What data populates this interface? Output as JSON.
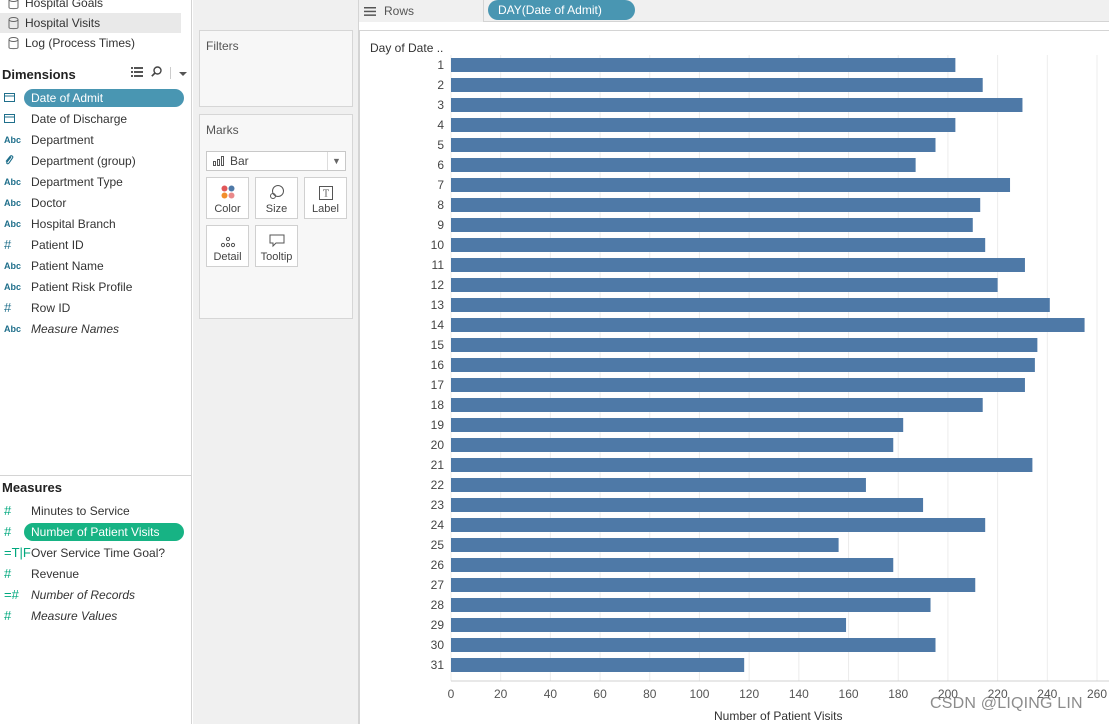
{
  "datasources": [
    {
      "name": "Hospital Goals",
      "selected": false
    },
    {
      "name": "Hospital Visits",
      "selected": true
    },
    {
      "name": "Log (Process Times)",
      "selected": false
    }
  ],
  "dimensions": {
    "title": "Dimensions",
    "fields": [
      {
        "type": "date",
        "name": "Date of Admit",
        "selected": true
      },
      {
        "type": "date",
        "name": "Date of Discharge"
      },
      {
        "type": "abc",
        "name": "Department"
      },
      {
        "type": "group",
        "name": "Department (group)"
      },
      {
        "type": "abc",
        "name": "Department Type"
      },
      {
        "type": "abc",
        "name": "Doctor"
      },
      {
        "type": "abc",
        "name": "Hospital Branch"
      },
      {
        "type": "num",
        "name": "Patient ID"
      },
      {
        "type": "abc",
        "name": "Patient Name"
      },
      {
        "type": "abc",
        "name": "Patient Risk Profile"
      },
      {
        "type": "num",
        "name": "Row ID"
      },
      {
        "type": "abc",
        "name": "Measure Names",
        "italic": true
      }
    ]
  },
  "measures": {
    "title": "Measures",
    "fields": [
      {
        "type": "num",
        "name": "Minutes to Service"
      },
      {
        "type": "num",
        "name": "Number of Patient Visits",
        "selected": true
      },
      {
        "type": "bool",
        "name": "Over Service Time Goal?"
      },
      {
        "type": "num",
        "name": "Revenue"
      },
      {
        "type": "calc",
        "name": "Number of Records",
        "italic": true
      },
      {
        "type": "num",
        "name": "Measure Values",
        "italic": true
      }
    ]
  },
  "type_labels": {
    "abc": "Abc",
    "bool": "=T|F",
    "calc": "=#"
  },
  "filters": {
    "title": "Filters"
  },
  "marks": {
    "title": "Marks",
    "mark_type": "Bar",
    "buttons": [
      {
        "label": "Color",
        "icon": "color-dots-icon"
      },
      {
        "label": "Size",
        "icon": "size-icon"
      },
      {
        "label": "Label",
        "icon": "text-label-icon"
      },
      {
        "label": "Detail",
        "icon": "detail-dots-icon"
      },
      {
        "label": "Tooltip",
        "icon": "tooltip-bubble-icon"
      }
    ]
  },
  "shelf": {
    "rows_label": "Rows",
    "rows_pill": "DAY(Date of Admit)"
  },
  "colors": {
    "bar": "#4e79a7",
    "dim_pill": "#4996b2",
    "measure_pill": "#17b384"
  },
  "watermark": "CSDN @LIQING LIN",
  "chart_data": {
    "type": "bar",
    "orientation": "horizontal",
    "row_header": "Day of Date ..",
    "xlabel": "Number of Patient Visits",
    "categories": [
      "1",
      "2",
      "3",
      "4",
      "5",
      "6",
      "7",
      "8",
      "9",
      "10",
      "11",
      "12",
      "13",
      "14",
      "15",
      "16",
      "17",
      "18",
      "19",
      "20",
      "21",
      "22",
      "23",
      "24",
      "25",
      "26",
      "27",
      "28",
      "29",
      "30",
      "31"
    ],
    "values": [
      203,
      214,
      230,
      203,
      195,
      187,
      225,
      213,
      210,
      215,
      231,
      220,
      241,
      255,
      236,
      235,
      231,
      214,
      182,
      178,
      234,
      167,
      190,
      215,
      156,
      178,
      211,
      193,
      159,
      195,
      118
    ],
    "xlim": [
      0,
      260
    ],
    "xticks": [
      0,
      20,
      40,
      60,
      80,
      100,
      120,
      140,
      160,
      180,
      200,
      220,
      240,
      260
    ],
    "grid": "vertical"
  }
}
